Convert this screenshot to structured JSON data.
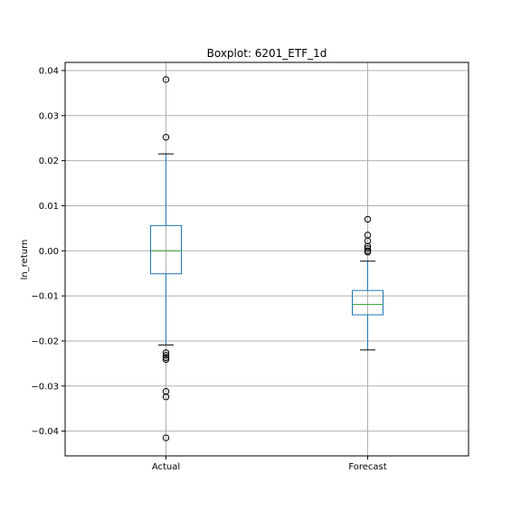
{
  "chart_data": {
    "type": "boxplot",
    "title": "Boxplot: 6201_ETF_1d",
    "xlabel": "",
    "ylabel": "ln_return",
    "ylim": [
      -0.0455,
      0.0418
    ],
    "yticks": [
      0.04,
      0.03,
      0.02,
      0.01,
      0.0,
      -0.01,
      -0.02,
      -0.03,
      -0.04
    ],
    "ytick_labels": [
      "0.04",
      "0.03",
      "0.02",
      "0.01",
      "0.00",
      "−0.01",
      "−0.02",
      "−0.03",
      "−0.04"
    ],
    "grid": true,
    "categories": [
      "Actual",
      "Forecast"
    ],
    "boxes": [
      {
        "category": "Actual",
        "whisker_low": -0.0209,
        "q1": -0.0051,
        "median": 0.0,
        "q3": 0.0056,
        "whisker_high": 0.0215,
        "outliers": [
          0.038,
          0.0252,
          -0.0226,
          -0.0232,
          -0.0237,
          -0.0241,
          -0.0312,
          -0.0324,
          -0.0415
        ]
      },
      {
        "category": "Forecast",
        "whisker_low": -0.022,
        "q1": -0.0142,
        "median": -0.0119,
        "q3": -0.0088,
        "whisker_high": -0.0023,
        "outliers": [
          0.007,
          0.0035,
          0.0022,
          0.001,
          0.0005,
          0.0,
          -0.0003
        ]
      }
    ],
    "colors": {
      "box": "#1f77b4",
      "median": "#2ca02c",
      "whisker_cap": "#000000",
      "grid": "#b0b0b0"
    }
  }
}
